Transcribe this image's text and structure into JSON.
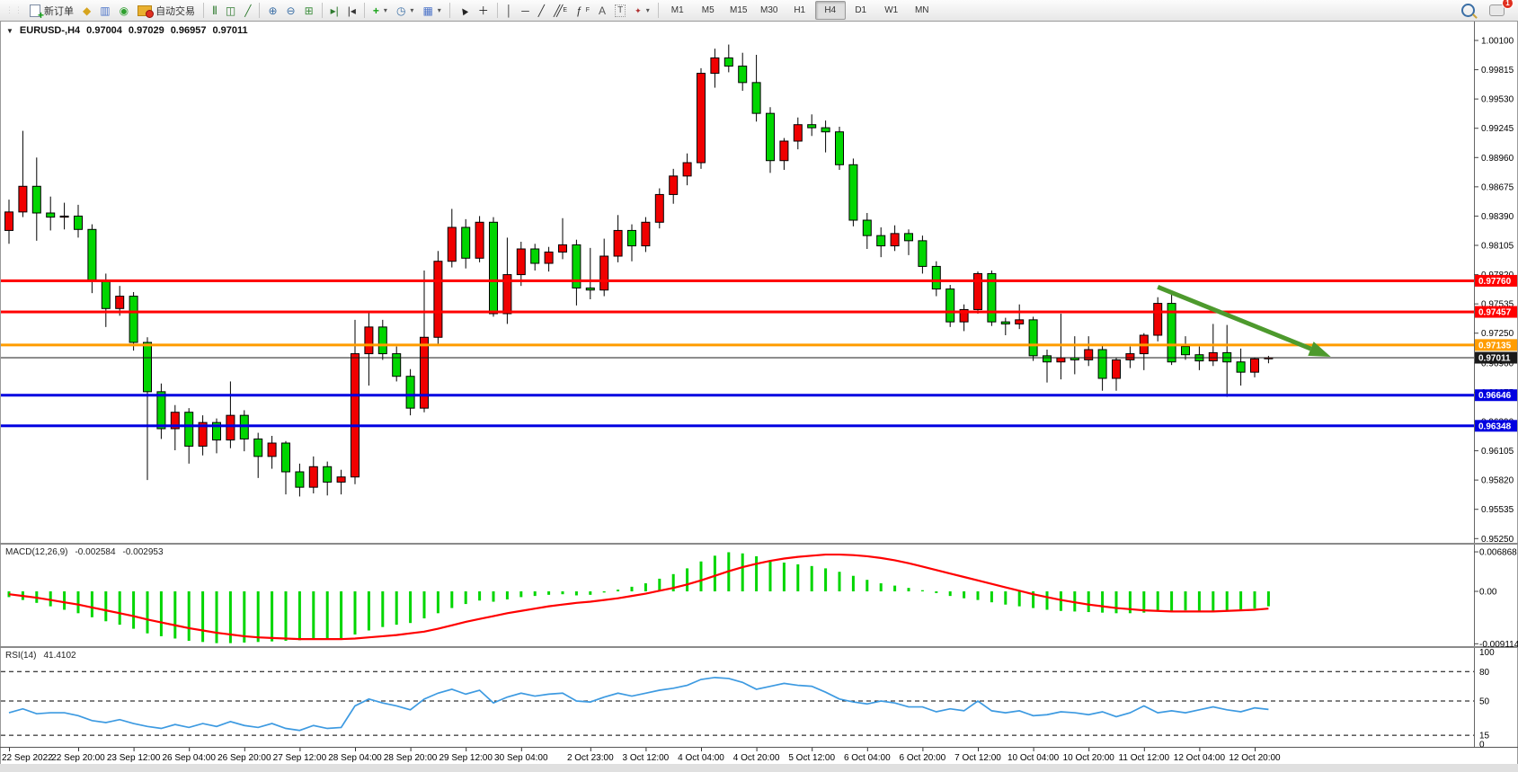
{
  "toolbar": {
    "new_order_label": "新订单",
    "autotrade_label": "自动交易",
    "timeframes": [
      "M1",
      "M5",
      "M15",
      "M30",
      "H1",
      "H4",
      "D1",
      "W1",
      "MN"
    ],
    "active_timeframe": "H4",
    "badge_count": "1"
  },
  "window": {
    "symbol_title": {
      "dropdown": "▼",
      "symbol": "EURUSD-,H4",
      "open": "0.97004",
      "high": "0.97029",
      "low": "0.96957",
      "close": "0.97011"
    }
  },
  "main_chart": {
    "type": "candlestick",
    "colors": {
      "bull": "#f00000",
      "bear": "#00d600",
      "wick": "#000000",
      "background": "#ffffff"
    },
    "price_ticks": [
      "1.00100",
      "0.99815",
      "0.99530",
      "0.99245",
      "0.98960",
      "0.98675",
      "0.98390",
      "0.98105",
      "0.97820",
      "0.97535",
      "0.97250",
      "0.96960",
      "0.96675",
      "0.96390",
      "0.96105",
      "0.95820",
      "0.95535",
      "0.95250"
    ],
    "hlines": [
      {
        "price": 0.9776,
        "label": "0.97760",
        "color": "#ff0000",
        "width": 3
      },
      {
        "price": 0.97457,
        "label": "0.97457",
        "color": "#ff0000",
        "width": 3
      },
      {
        "price": 0.97135,
        "label": "0.97135",
        "color": "#ff9c00",
        "width": 3
      },
      {
        "price": 0.97011,
        "label": "0.97011",
        "color": "#1a1a1a",
        "width": 1
      },
      {
        "price": 0.96646,
        "label": "0.96646",
        "color": "#0000e0",
        "width": 3
      },
      {
        "price": 0.96348,
        "label": "0.96348",
        "color": "#0000e0",
        "width": 3
      }
    ],
    "trend_arrow": {
      "from_bar": 83,
      "from_price": 0.977,
      "to_bar": 95.5,
      "to_price": 0.9702,
      "color": "#4d9a2d"
    },
    "x_labels": [
      {
        "i": 0,
        "t": "22 Sep 2022"
      },
      {
        "i": 5,
        "t": "22 Sep 20:00"
      },
      {
        "i": 9,
        "t": "23 Sep 12:00"
      },
      {
        "i": 13,
        "t": "26 Sep 04:00"
      },
      {
        "i": 17,
        "t": "26 Sep 20:00"
      },
      {
        "i": 21,
        "t": "27 Sep 12:00"
      },
      {
        "i": 25,
        "t": "28 Sep 04:00"
      },
      {
        "i": 29,
        "t": "28 Sep 20:00"
      },
      {
        "i": 33,
        "t": "29 Sep 12:00"
      },
      {
        "i": 37,
        "t": "30 Sep 04:00"
      },
      {
        "i": 42,
        "t": "2 Oct 23:00"
      },
      {
        "i": 46,
        "t": "3 Oct 12:00"
      },
      {
        "i": 50,
        "t": "4 Oct 04:00"
      },
      {
        "i": 54,
        "t": "4 Oct 20:00"
      },
      {
        "i": 58,
        "t": "5 Oct 12:00"
      },
      {
        "i": 62,
        "t": "6 Oct 04:00"
      },
      {
        "i": 66,
        "t": "6 Oct 20:00"
      },
      {
        "i": 70,
        "t": "7 Oct 12:00"
      },
      {
        "i": 74,
        "t": "10 Oct 04:00"
      },
      {
        "i": 78,
        "t": "10 Oct 20:00"
      },
      {
        "i": 82,
        "t": "11 Oct 12:00"
      },
      {
        "i": 86,
        "t": "12 Oct 04:00"
      },
      {
        "i": 90,
        "t": "12 Oct 20:00"
      }
    ],
    "candles": [
      [
        0.9825,
        0.9855,
        0.9812,
        0.9843
      ],
      [
        0.9843,
        0.9922,
        0.9838,
        0.9868
      ],
      [
        0.9868,
        0.9896,
        0.9815,
        0.9842
      ],
      [
        0.9842,
        0.9858,
        0.9825,
        0.9838
      ],
      [
        0.9838,
        0.9852,
        0.9826,
        0.9839
      ],
      [
        0.9839,
        0.985,
        0.9818,
        0.9826
      ],
      [
        0.9826,
        0.9831,
        0.9764,
        0.9776
      ],
      [
        0.9776,
        0.9783,
        0.9731,
        0.9749
      ],
      [
        0.9749,
        0.9771,
        0.9742,
        0.9761
      ],
      [
        0.9761,
        0.9765,
        0.9708,
        0.9716
      ],
      [
        0.9716,
        0.9721,
        0.9582,
        0.9668
      ],
      [
        0.9668,
        0.9676,
        0.9622,
        0.9632
      ],
      [
        0.9632,
        0.9655,
        0.9611,
        0.9648
      ],
      [
        0.9648,
        0.9652,
        0.9598,
        0.9615
      ],
      [
        0.9615,
        0.9645,
        0.9606,
        0.9638
      ],
      [
        0.9638,
        0.9642,
        0.9608,
        0.9621
      ],
      [
        0.9621,
        0.9678,
        0.9613,
        0.9645
      ],
      [
        0.9645,
        0.965,
        0.961,
        0.9622
      ],
      [
        0.9622,
        0.9628,
        0.9584,
        0.9605
      ],
      [
        0.9605,
        0.9625,
        0.9593,
        0.9618
      ],
      [
        0.9618,
        0.962,
        0.9568,
        0.959
      ],
      [
        0.959,
        0.9598,
        0.9566,
        0.9575
      ],
      [
        0.9575,
        0.9605,
        0.9569,
        0.9595
      ],
      [
        0.9595,
        0.96,
        0.9567,
        0.958
      ],
      [
        0.958,
        0.9592,
        0.9568,
        0.9585
      ],
      [
        0.9585,
        0.9738,
        0.9578,
        0.9705
      ],
      [
        0.9705,
        0.9745,
        0.9674,
        0.9731
      ],
      [
        0.9731,
        0.9738,
        0.9699,
        0.9705
      ],
      [
        0.9705,
        0.9712,
        0.9678,
        0.9683
      ],
      [
        0.9683,
        0.969,
        0.9645,
        0.9652
      ],
      [
        0.9652,
        0.9786,
        0.9648,
        0.9721
      ],
      [
        0.9721,
        0.9805,
        0.9714,
        0.9795
      ],
      [
        0.9795,
        0.9846,
        0.9789,
        0.9828
      ],
      [
        0.9828,
        0.9836,
        0.9788,
        0.9798
      ],
      [
        0.9798,
        0.9839,
        0.9794,
        0.9833
      ],
      [
        0.9833,
        0.9838,
        0.9741,
        0.9744
      ],
      [
        0.9744,
        0.9818,
        0.9734,
        0.9782
      ],
      [
        0.9782,
        0.9814,
        0.9771,
        0.9807
      ],
      [
        0.9807,
        0.9812,
        0.9786,
        0.9793
      ],
      [
        0.9793,
        0.9809,
        0.9785,
        0.9804
      ],
      [
        0.9804,
        0.9837,
        0.9797,
        0.9811
      ],
      [
        0.9811,
        0.9816,
        0.9752,
        0.9769
      ],
      [
        0.9769,
        0.9808,
        0.9758,
        0.9767
      ],
      [
        0.9767,
        0.9817,
        0.9761,
        0.98
      ],
      [
        0.98,
        0.984,
        0.9794,
        0.9825
      ],
      [
        0.9825,
        0.9831,
        0.9795,
        0.981
      ],
      [
        0.981,
        0.9838,
        0.9804,
        0.9833
      ],
      [
        0.9833,
        0.9866,
        0.9827,
        0.986
      ],
      [
        0.986,
        0.9885,
        0.9851,
        0.9878
      ],
      [
        0.9878,
        0.99,
        0.9869,
        0.9891
      ],
      [
        0.9891,
        0.9983,
        0.9885,
        0.9978
      ],
      [
        0.9978,
        1.0002,
        0.9964,
        0.9993
      ],
      [
        0.9993,
        1.0006,
        0.9979,
        0.9985
      ],
      [
        0.9985,
        0.9998,
        0.9961,
        0.9969
      ],
      [
        0.9969,
        0.9996,
        0.9931,
        0.9939
      ],
      [
        0.9939,
        0.9945,
        0.9881,
        0.9893
      ],
      [
        0.9893,
        0.9915,
        0.9884,
        0.9912
      ],
      [
        0.9912,
        0.9935,
        0.9904,
        0.9928
      ],
      [
        0.9928,
        0.9938,
        0.9917,
        0.9925
      ],
      [
        0.9925,
        0.9932,
        0.9901,
        0.9921
      ],
      [
        0.9921,
        0.9926,
        0.9884,
        0.9889
      ],
      [
        0.9889,
        0.9895,
        0.9829,
        0.9835
      ],
      [
        0.9835,
        0.9842,
        0.9807,
        0.982
      ],
      [
        0.982,
        0.9828,
        0.9799,
        0.981
      ],
      [
        0.981,
        0.983,
        0.9805,
        0.9822
      ],
      [
        0.9822,
        0.9826,
        0.9801,
        0.9815
      ],
      [
        0.9815,
        0.982,
        0.9783,
        0.979
      ],
      [
        0.979,
        0.9795,
        0.9761,
        0.9768
      ],
      [
        0.9768,
        0.9772,
        0.9731,
        0.9736
      ],
      [
        0.9736,
        0.9753,
        0.9727,
        0.9748
      ],
      [
        0.9748,
        0.9785,
        0.9744,
        0.9783
      ],
      [
        0.9783,
        0.9786,
        0.9732,
        0.9736
      ],
      [
        0.9736,
        0.974,
        0.9723,
        0.9734
      ],
      [
        0.9734,
        0.9753,
        0.9729,
        0.9738
      ],
      [
        0.9738,
        0.9741,
        0.9698,
        0.9703
      ],
      [
        0.9703,
        0.9709,
        0.9677,
        0.9697
      ],
      [
        0.9697,
        0.9744,
        0.968,
        0.9701
      ],
      [
        0.9701,
        0.9722,
        0.9685,
        0.9699
      ],
      [
        0.9699,
        0.9722,
        0.9693,
        0.9709
      ],
      [
        0.9709,
        0.9714,
        0.9669,
        0.9681
      ],
      [
        0.9681,
        0.9701,
        0.9669,
        0.9699
      ],
      [
        0.9699,
        0.9712,
        0.9691,
        0.9705
      ],
      [
        0.9705,
        0.9725,
        0.9689,
        0.9723
      ],
      [
        0.9723,
        0.976,
        0.9717,
        0.9754
      ],
      [
        0.9754,
        0.9765,
        0.9694,
        0.9697
      ],
      [
        0.9712,
        0.9722,
        0.9699,
        0.9704
      ],
      [
        0.9704,
        0.9712,
        0.9689,
        0.9698
      ],
      [
        0.9698,
        0.9734,
        0.9693,
        0.9706
      ],
      [
        0.9706,
        0.9733,
        0.9663,
        0.9697
      ],
      [
        0.9697,
        0.971,
        0.9674,
        0.9687
      ],
      [
        0.9687,
        0.9701,
        0.9682,
        0.97
      ],
      [
        0.97004,
        0.97029,
        0.96957,
        0.97011
      ]
    ]
  },
  "macd": {
    "label": "MACD(12,26,9)",
    "value": "-0.002584",
    "signal_value": "-0.002953",
    "axis": [
      "0.006868",
      "0.00",
      "-0.009114"
    ],
    "colors": {
      "histogram": "#00d600",
      "signal": "#ff0000"
    },
    "histogram": [
      -1.0,
      -1.5,
      -2.0,
      -2.6,
      -3.2,
      -3.8,
      -4.5,
      -5.2,
      -5.8,
      -6.5,
      -7.3,
      -7.8,
      -8.2,
      -8.6,
      -8.8,
      -9.0,
      -9.0,
      -8.9,
      -8.8,
      -8.7,
      -8.6,
      -8.5,
      -8.4,
      -8.3,
      -8.2,
      -7.5,
      -6.8,
      -6.2,
      -5.8,
      -5.5,
      -4.7,
      -3.8,
      -2.9,
      -2.2,
      -1.6,
      -1.8,
      -1.4,
      -1.0,
      -0.8,
      -0.6,
      -0.5,
      -0.7,
      -0.6,
      -0.2,
      0.3,
      0.8,
      1.4,
      2.2,
      3.0,
      4.0,
      5.2,
      6.2,
      6.8,
      6.6,
      6.1,
      5.4,
      5.0,
      4.7,
      4.4,
      4.0,
      3.4,
      2.7,
      2.0,
      1.4,
      1.0,
      0.6,
      0.2,
      -0.3,
      -0.8,
      -1.2,
      -1.5,
      -1.9,
      -2.3,
      -2.6,
      -2.9,
      -3.2,
      -3.4,
      -3.5,
      -3.6,
      -3.7,
      -3.8,
      -3.8,
      -3.7,
      -3.5,
      -3.4,
      -3.3,
      -3.4,
      -3.5,
      -3.4,
      -3.2,
      -3.0,
      -2.6
    ],
    "signal_line": [
      -0.5,
      -0.8,
      -1.1,
      -1.5,
      -1.9,
      -2.3,
      -2.8,
      -3.3,
      -3.8,
      -4.3,
      -4.9,
      -5.4,
      -5.9,
      -6.4,
      -6.8,
      -7.2,
      -7.5,
      -7.8,
      -8.0,
      -8.1,
      -8.2,
      -8.3,
      -8.3,
      -8.3,
      -8.3,
      -8.2,
      -8.0,
      -7.8,
      -7.6,
      -7.3,
      -7.0,
      -6.5,
      -5.9,
      -5.3,
      -4.8,
      -4.3,
      -3.8,
      -3.4,
      -3.0,
      -2.6,
      -2.3,
      -2.0,
      -1.8,
      -1.5,
      -1.2,
      -0.8,
      -0.4,
      0.1,
      0.6,
      1.2,
      1.9,
      2.7,
      3.5,
      4.2,
      4.8,
      5.3,
      5.7,
      6.0,
      6.2,
      6.4,
      6.4,
      6.3,
      6.1,
      5.8,
      5.4,
      4.9,
      4.3,
      3.7,
      3.1,
      2.5,
      1.9,
      1.3,
      0.7,
      0.1,
      -0.5,
      -1.0,
      -1.5,
      -1.9,
      -2.3,
      -2.6,
      -2.9,
      -3.1,
      -3.3,
      -3.4,
      -3.5,
      -3.5,
      -3.5,
      -3.5,
      -3.4,
      -3.3,
      -3.2,
      -3.0
    ]
  },
  "rsi": {
    "label": "RSI(14)",
    "value": "41.4102",
    "levels": [
      80,
      50,
      15
    ],
    "axis_labels": [
      "100",
      "80",
      "50",
      "15",
      "0"
    ],
    "color": "#3d9ae1",
    "values": [
      38,
      42,
      37,
      38,
      38,
      35,
      30,
      28,
      31,
      27,
      24,
      22,
      26,
      23,
      27,
      24,
      29,
      25,
      23,
      27,
      22,
      20,
      25,
      22,
      23,
      45,
      52,
      48,
      45,
      41,
      52,
      58,
      62,
      57,
      61,
      48,
      54,
      58,
      55,
      57,
      58,
      50,
      49,
      54,
      58,
      55,
      58,
      61,
      63,
      66,
      72,
      74,
      73,
      69,
      62,
      65,
      68,
      66,
      65,
      59,
      52,
      49,
      47,
      50,
      48,
      44,
      44,
      39,
      42,
      40,
      50,
      40,
      38,
      40,
      35,
      36,
      39,
      38,
      36,
      39,
      34,
      38,
      45,
      38,
      40,
      38,
      41,
      44,
      41,
      39,
      43,
      41.4
    ]
  }
}
